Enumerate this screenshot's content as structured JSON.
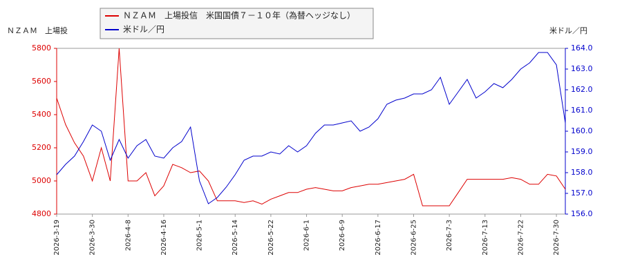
{
  "chart_data": {
    "type": "line",
    "y_label": "ＮＺＡＭ　上場投",
    "y2_label": "米ドル／円",
    "categories": [
      "2026-3-19",
      null,
      null,
      null,
      "2026-3-30",
      null,
      null,
      null,
      "2026-4-8",
      null,
      null,
      null,
      "2026-4-16",
      null,
      null,
      null,
      "2026-5-1",
      null,
      null,
      null,
      "2026-5-14",
      null,
      null,
      null,
      "2026-5-22",
      null,
      null,
      null,
      "2026-6-1",
      null,
      null,
      null,
      "2026-6-9",
      null,
      null,
      null,
      "2026-6-17",
      null,
      null,
      null,
      "2026-6-25",
      null,
      null,
      null,
      "2026-7-3",
      null,
      null,
      null,
      "2026-7-13",
      null,
      null,
      null,
      "2026-7-22",
      null,
      null,
      null,
      "2026-7-30",
      null
    ],
    "series": [
      {
        "name": "ＮＺＡＭ　上場投信　米国国債７－１０年（為替ヘッジなし）",
        "color": "#dd0000",
        "axis": "y",
        "values": [
          5500,
          5340,
          5230,
          5150,
          5000,
          5200,
          5000,
          5800,
          5000,
          5000,
          5050,
          4910,
          4970,
          5100,
          5080,
          5050,
          5060,
          5000,
          4880,
          4880,
          4880,
          4870,
          4880,
          4860,
          4890,
          4910,
          4930,
          4930,
          4950,
          4960,
          4950,
          4940,
          4940,
          4960,
          4970,
          4980,
          4980,
          4990,
          5000,
          5010,
          5040,
          4850,
          4850,
          4850,
          4850,
          4930,
          5010,
          5010,
          5010,
          5010,
          5010,
          5020,
          5010,
          4980,
          4980,
          5040,
          5030,
          4950
        ]
      },
      {
        "name": "米ドル／円",
        "color": "#0000cc",
        "axis": "y2",
        "values": [
          157.9,
          158.4,
          158.8,
          159.5,
          160.3,
          160.0,
          158.6,
          159.6,
          158.7,
          159.3,
          159.6,
          158.8,
          158.7,
          159.2,
          159.5,
          160.2,
          157.6,
          156.5,
          156.8,
          157.3,
          157.9,
          158.6,
          158.8,
          158.8,
          159.0,
          158.9,
          159.3,
          159.0,
          159.3,
          159.9,
          160.3,
          160.3,
          160.4,
          160.5,
          160.0,
          160.2,
          160.6,
          161.3,
          161.5,
          161.6,
          161.8,
          161.8,
          162.0,
          162.6,
          161.3,
          161.9,
          162.5,
          161.6,
          161.9,
          162.3,
          162.1,
          162.5,
          163.0,
          163.3,
          163.8,
          163.8,
          163.2,
          160.4
        ]
      }
    ],
    "ylim": [
      4800,
      5800
    ],
    "yticks": [
      4800,
      5000,
      5200,
      5400,
      5600,
      5800
    ],
    "y2lim": [
      156,
      164
    ],
    "y2ticks": [
      {
        "value": 156,
        "label": "156.0"
      },
      {
        "value": 157,
        "label": "157.0"
      },
      {
        "value": 158,
        "label": "158.0"
      },
      {
        "value": 159,
        "label": "159.0"
      },
      {
        "value": 160,
        "label": "160.0"
      },
      {
        "value": 161,
        "label": "161.0"
      },
      {
        "value": 162,
        "label": "162.0"
      },
      {
        "value": 163,
        "label": "163.0"
      },
      {
        "value": 164,
        "label": "164.0"
      }
    ],
    "grid": false
  }
}
